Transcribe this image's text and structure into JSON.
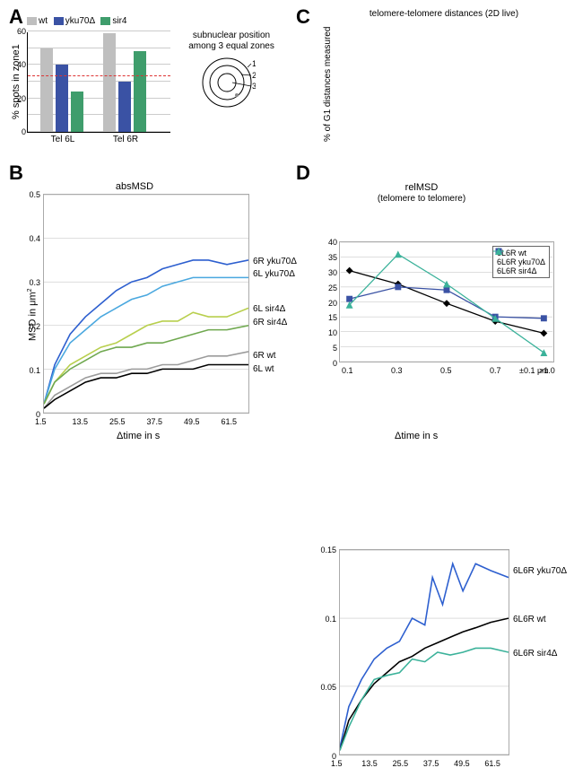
{
  "colors": {
    "wt": "#bfbfbf",
    "yku70": "#3a52a4",
    "sir4": "#3f9d6c",
    "red": "#d02828",
    "black": "#000000",
    "grey_line": "#9b9b9b",
    "teal": "#3bb29a",
    "green2": "#6fa84f",
    "lightgreen": "#b8cf4d",
    "skyblue": "#4aa8df",
    "blue2": "#2d5fcf"
  },
  "panelA": {
    "title": "A",
    "ylabel": "% spots in zone1",
    "ymax": 60,
    "ytick_step": 10,
    "red_dash": 33,
    "legend": [
      {
        "label": "wt",
        "color_key": "wt"
      },
      {
        "label": "yku70Δ",
        "color_key": "yku70"
      },
      {
        "label": "sir4",
        "color_key": "sir4"
      }
    ],
    "groups": [
      {
        "label": "Tel 6L",
        "bars": [
          {
            "key": "wt",
            "value": 50
          },
          {
            "key": "yku70",
            "value": 40
          },
          {
            "key": "sir4",
            "value": 24
          }
        ]
      },
      {
        "label": "Tel 6R",
        "bars": [
          {
            "key": "wt",
            "value": 59
          },
          {
            "key": "yku70",
            "value": 30
          },
          {
            "key": "sir4",
            "value": 48
          }
        ]
      }
    ],
    "ring_caption": "subnuclear position among 3 equal zones",
    "ring_labels": [
      "1",
      "2",
      "3"
    ]
  },
  "panelB": {
    "title": "absMSD",
    "xlabel": "Δtime in s",
    "ylabel": "MSD in μm",
    "ylabel_sup": "2",
    "xlim": [
      1.5,
      68
    ],
    "ylim": [
      0,
      0.5
    ],
    "yticks": [
      0,
      0.1,
      0.2,
      0.3,
      0.4,
      0.5
    ],
    "xticks": [
      1.5,
      13.5,
      25.5,
      37.5,
      49.5,
      61.5
    ],
    "series": [
      {
        "name": "6R yku70Δ",
        "color_key": "blue2",
        "label_y": 0.35,
        "pts": [
          [
            1.5,
            0.02
          ],
          [
            5,
            0.11
          ],
          [
            10,
            0.18
          ],
          [
            15,
            0.22
          ],
          [
            20,
            0.25
          ],
          [
            25,
            0.28
          ],
          [
            30,
            0.3
          ],
          [
            35,
            0.31
          ],
          [
            40,
            0.33
          ],
          [
            45,
            0.34
          ],
          [
            50,
            0.35
          ],
          [
            55,
            0.35
          ],
          [
            61,
            0.34
          ],
          [
            68,
            0.35
          ]
        ]
      },
      {
        "name": "6L yku70Δ",
        "color_key": "skyblue",
        "label_y": 0.32,
        "pts": [
          [
            1.5,
            0.02
          ],
          [
            5,
            0.1
          ],
          [
            10,
            0.16
          ],
          [
            15,
            0.19
          ],
          [
            20,
            0.22
          ],
          [
            25,
            0.24
          ],
          [
            30,
            0.26
          ],
          [
            35,
            0.27
          ],
          [
            40,
            0.29
          ],
          [
            45,
            0.3
          ],
          [
            50,
            0.31
          ],
          [
            55,
            0.31
          ],
          [
            61,
            0.31
          ],
          [
            68,
            0.31
          ]
        ]
      },
      {
        "name": "6L sir4Δ",
        "color_key": "lightgreen",
        "label_y": 0.24,
        "pts": [
          [
            1.5,
            0.02
          ],
          [
            5,
            0.07
          ],
          [
            10,
            0.11
          ],
          [
            15,
            0.13
          ],
          [
            20,
            0.15
          ],
          [
            25,
            0.16
          ],
          [
            30,
            0.18
          ],
          [
            35,
            0.2
          ],
          [
            40,
            0.21
          ],
          [
            45,
            0.21
          ],
          [
            50,
            0.23
          ],
          [
            55,
            0.22
          ],
          [
            61,
            0.22
          ],
          [
            68,
            0.24
          ]
        ]
      },
      {
        "name": "6R sir4Δ",
        "color_key": "green2",
        "label_y": 0.21,
        "pts": [
          [
            1.5,
            0.02
          ],
          [
            5,
            0.07
          ],
          [
            10,
            0.1
          ],
          [
            15,
            0.12
          ],
          [
            20,
            0.14
          ],
          [
            25,
            0.15
          ],
          [
            30,
            0.15
          ],
          [
            35,
            0.16
          ],
          [
            40,
            0.16
          ],
          [
            45,
            0.17
          ],
          [
            50,
            0.18
          ],
          [
            55,
            0.19
          ],
          [
            61,
            0.19
          ],
          [
            68,
            0.2
          ]
        ]
      },
      {
        "name": "6R wt",
        "color_key": "grey_line",
        "label_y": 0.135,
        "pts": [
          [
            1.5,
            0.01
          ],
          [
            5,
            0.04
          ],
          [
            10,
            0.06
          ],
          [
            15,
            0.08
          ],
          [
            20,
            0.09
          ],
          [
            25,
            0.09
          ],
          [
            30,
            0.1
          ],
          [
            35,
            0.1
          ],
          [
            40,
            0.11
          ],
          [
            45,
            0.11
          ],
          [
            50,
            0.12
          ],
          [
            55,
            0.13
          ],
          [
            61,
            0.13
          ],
          [
            68,
            0.14
          ]
        ]
      },
      {
        "name": "6L wt",
        "color_key": "black",
        "label_y": 0.105,
        "pts": [
          [
            1.5,
            0.01
          ],
          [
            5,
            0.03
          ],
          [
            10,
            0.05
          ],
          [
            15,
            0.07
          ],
          [
            20,
            0.08
          ],
          [
            25,
            0.08
          ],
          [
            30,
            0.09
          ],
          [
            35,
            0.09
          ],
          [
            40,
            0.1
          ],
          [
            45,
            0.1
          ],
          [
            50,
            0.1
          ],
          [
            55,
            0.11
          ],
          [
            61,
            0.11
          ],
          [
            68,
            0.11
          ]
        ]
      }
    ]
  },
  "panelC": {
    "title": "telomere-telomere distances (2D live)",
    "xlabel_suffix": "±0.1 μm",
    "ylabel": "% of G1 distances measured",
    "xticks": [
      "0.1",
      "0.3",
      "0.5",
      "0.7",
      ">1.0"
    ],
    "ymax": 40,
    "ytick_step": 5,
    "legend": [
      {
        "label": "6L6R wt",
        "color_key": "black",
        "marker": "diamond"
      },
      {
        "label": "6L6R yku70Δ",
        "color_key": "yku70",
        "marker": "square"
      },
      {
        "label": "6L6R sir4Δ",
        "color_key": "teal",
        "marker": "triangle"
      }
    ],
    "series": [
      {
        "key": "black",
        "marker": "diamond",
        "pts": [
          [
            0,
            30.5
          ],
          [
            1,
            26
          ],
          [
            2,
            19.5
          ],
          [
            3,
            13.5
          ],
          [
            4,
            9.5
          ]
        ]
      },
      {
        "key": "yku70",
        "marker": "square",
        "pts": [
          [
            0,
            21
          ],
          [
            1,
            25
          ],
          [
            2,
            24
          ],
          [
            3,
            15
          ],
          [
            4,
            14.5
          ]
        ]
      },
      {
        "key": "teal",
        "marker": "triangle",
        "pts": [
          [
            0,
            19
          ],
          [
            1,
            36
          ],
          [
            2,
            26
          ],
          [
            3,
            14.5
          ],
          [
            4,
            3
          ]
        ]
      }
    ]
  },
  "panelD": {
    "title": "relMSD",
    "subtitle": "(telomere to telomere)",
    "xlabel": "Δtime in s",
    "ylim": [
      0,
      0.15
    ],
    "yticks": [
      0,
      0.05,
      0.1,
      0.15
    ],
    "xticks": [
      1.5,
      13.5,
      25.5,
      37.5,
      49.5,
      61.5
    ],
    "xlim": [
      1.5,
      68
    ],
    "series": [
      {
        "name": "6L6R yku70Δ",
        "color_key": "blue2",
        "label_y": 0.135,
        "pts": [
          [
            1.5,
            0.005
          ],
          [
            5,
            0.035
          ],
          [
            10,
            0.055
          ],
          [
            15,
            0.07
          ],
          [
            20,
            0.078
          ],
          [
            25,
            0.083
          ],
          [
            30,
            0.1
          ],
          [
            35,
            0.095
          ],
          [
            38,
            0.13
          ],
          [
            42,
            0.11
          ],
          [
            46,
            0.14
          ],
          [
            50,
            0.12
          ],
          [
            55,
            0.14
          ],
          [
            61,
            0.135
          ],
          [
            68,
            0.13
          ]
        ]
      },
      {
        "name": "6L6R wt",
        "color_key": "black",
        "label_y": 0.1,
        "pts": [
          [
            1.5,
            0.003
          ],
          [
            5,
            0.025
          ],
          [
            10,
            0.04
          ],
          [
            15,
            0.052
          ],
          [
            20,
            0.06
          ],
          [
            25,
            0.068
          ],
          [
            30,
            0.072
          ],
          [
            35,
            0.078
          ],
          [
            40,
            0.082
          ],
          [
            45,
            0.086
          ],
          [
            50,
            0.09
          ],
          [
            55,
            0.093
          ],
          [
            61,
            0.097
          ],
          [
            68,
            0.1
          ]
        ]
      },
      {
        "name": "6L6R sir4Δ",
        "color_key": "teal",
        "label_y": 0.075,
        "pts": [
          [
            1.5,
            0.003
          ],
          [
            5,
            0.02
          ],
          [
            10,
            0.04
          ],
          [
            15,
            0.055
          ],
          [
            20,
            0.058
          ],
          [
            25,
            0.06
          ],
          [
            30,
            0.07
          ],
          [
            35,
            0.068
          ],
          [
            40,
            0.075
          ],
          [
            45,
            0.073
          ],
          [
            50,
            0.075
          ],
          [
            55,
            0.078
          ],
          [
            61,
            0.078
          ],
          [
            68,
            0.075
          ]
        ]
      }
    ]
  }
}
